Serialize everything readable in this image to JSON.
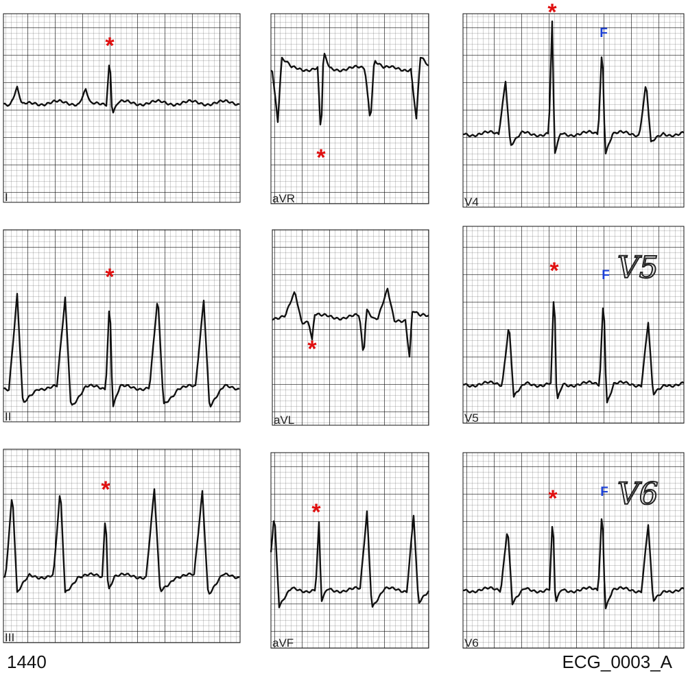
{
  "panels": [
    {
      "label": "I",
      "markers": [
        "*"
      ]
    },
    {
      "label": "aVR",
      "markers": [
        "*"
      ]
    },
    {
      "label": "V4",
      "markers": [
        "*",
        "F"
      ]
    },
    {
      "label": "II",
      "markers": [
        "*"
      ]
    },
    {
      "label": "aVL",
      "markers": [
        "*"
      ]
    },
    {
      "label": "V5",
      "markers": [
        "*",
        "F"
      ]
    },
    {
      "label": "III",
      "markers": [
        "*"
      ]
    },
    {
      "label": "aVF",
      "markers": [
        "*"
      ]
    },
    {
      "label": "V6",
      "markers": [
        "*",
        "F"
      ]
    }
  ],
  "handwritten": [
    "V5",
    "V6"
  ],
  "footer": {
    "left": "1440",
    "right": "ECG_0003_A"
  }
}
